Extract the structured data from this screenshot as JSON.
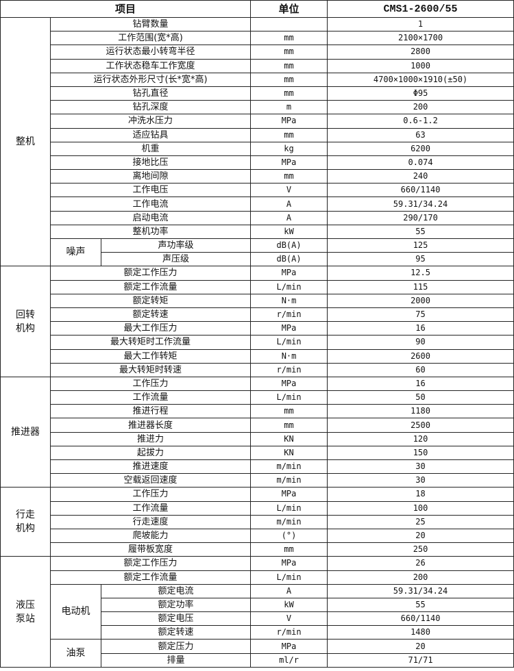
{
  "header": {
    "item": "项目",
    "unit": "单位",
    "value": "CMS1-2600/55"
  },
  "groups": [
    {
      "name": "整机",
      "rows": [
        {
          "item": "钻臂数量",
          "unit": "",
          "value": "1"
        },
        {
          "item": "工作范围(宽*高)",
          "unit": "mm",
          "value": "2100×1700"
        },
        {
          "item": "运行状态最小转弯半径",
          "unit": "mm",
          "value": "2800"
        },
        {
          "item": "工作状态稳车工作宽度",
          "unit": "mm",
          "value": "1000"
        },
        {
          "item": "运行状态外形尺寸(长*宽*高)",
          "unit": "mm",
          "value": "4700×1000×1910(±50)"
        },
        {
          "item": "钻孔直径",
          "unit": "mm",
          "value": "Φ95"
        },
        {
          "item": "钻孔深度",
          "unit": "m",
          "value": "200"
        },
        {
          "item": "冲洗水压力",
          "unit": "MPa",
          "value": "0.6-1.2"
        },
        {
          "item": "适应钻具",
          "unit": "mm",
          "value": "63"
        },
        {
          "item": "机重",
          "unit": "kg",
          "value": "6200"
        },
        {
          "item": "接地比压",
          "unit": "MPa",
          "value": "0.074"
        },
        {
          "item": "离地间隙",
          "unit": "mm",
          "value": "240"
        },
        {
          "item": "工作电压",
          "unit": "V",
          "value": "660/1140"
        },
        {
          "item": "工作电流",
          "unit": "A",
          "value": "59.31/34.24"
        },
        {
          "item": "启动电流",
          "unit": "A",
          "value": "290/170"
        },
        {
          "item": "整机功率",
          "unit": "kW",
          "value": "55"
        },
        {
          "sub": "噪声",
          "item": "声功率级",
          "unit": "dB(A)",
          "value": "125"
        },
        {
          "sub": "噪声",
          "item": "声压级",
          "unit": "dB(A)",
          "value": "95"
        }
      ]
    },
    {
      "name": "回转机构",
      "rows": [
        {
          "item": "额定工作压力",
          "unit": "MPa",
          "value": "12.5"
        },
        {
          "item": "额定工作流量",
          "unit": "L/min",
          "value": "115"
        },
        {
          "item": "额定转矩",
          "unit": "N·m",
          "value": "2000"
        },
        {
          "item": "额定转速",
          "unit": "r/min",
          "value": "75"
        },
        {
          "item": "最大工作压力",
          "unit": "MPa",
          "value": "16"
        },
        {
          "item": "最大转矩时工作流量",
          "unit": "L/min",
          "value": "90"
        },
        {
          "item": "最大工作转矩",
          "unit": "N·m",
          "value": "2600"
        },
        {
          "item": "最大转矩时转速",
          "unit": "r/min",
          "value": "60"
        }
      ]
    },
    {
      "name": "推进器",
      "rows": [
        {
          "item": "工作压力",
          "unit": "MPa",
          "value": "16"
        },
        {
          "item": "工作流量",
          "unit": "L/min",
          "value": "50"
        },
        {
          "item": "推进行程",
          "unit": "mm",
          "value": "1180"
        },
        {
          "item": "推进器长度",
          "unit": "mm",
          "value": "2500"
        },
        {
          "item": "推进力",
          "unit": "KN",
          "value": "120"
        },
        {
          "item": "起拔力",
          "unit": "KN",
          "value": "150"
        },
        {
          "item": "推进速度",
          "unit": "m/min",
          "value": "30"
        },
        {
          "item": "空载返回速度",
          "unit": "m/min",
          "value": "30"
        }
      ]
    },
    {
      "name": "行走机构",
      "rows": [
        {
          "item": "工作压力",
          "unit": "MPa",
          "value": "18"
        },
        {
          "item": "工作流量",
          "unit": "L/min",
          "value": "100"
        },
        {
          "item": "行走速度",
          "unit": "m/min",
          "value": "25"
        },
        {
          "item": "爬坡能力",
          "unit": "(°)",
          "value": "20"
        },
        {
          "item": "履带板宽度",
          "unit": "mm",
          "value": "250"
        }
      ]
    },
    {
      "name": "液压泵站",
      "rows": [
        {
          "item": "额定工作压力",
          "unit": "MPa",
          "value": "26"
        },
        {
          "item": "额定工作流量",
          "unit": "L/min",
          "value": "200"
        },
        {
          "sub": "电动机",
          "item": "额定电流",
          "unit": "A",
          "value": "59.31/34.24"
        },
        {
          "sub": "电动机",
          "item": "额定功率",
          "unit": "kW",
          "value": "55"
        },
        {
          "sub": "电动机",
          "item": "额定电压",
          "unit": "V",
          "value": "660/1140"
        },
        {
          "sub": "电动机",
          "item": "额定转速",
          "unit": "r/min",
          "value": "1480"
        },
        {
          "sub": "油泵",
          "item": "额定压力",
          "unit": "MPa",
          "value": "20"
        },
        {
          "sub": "油泵",
          "item": "排量",
          "unit": "ml/r",
          "value": "71/71"
        }
      ]
    }
  ]
}
